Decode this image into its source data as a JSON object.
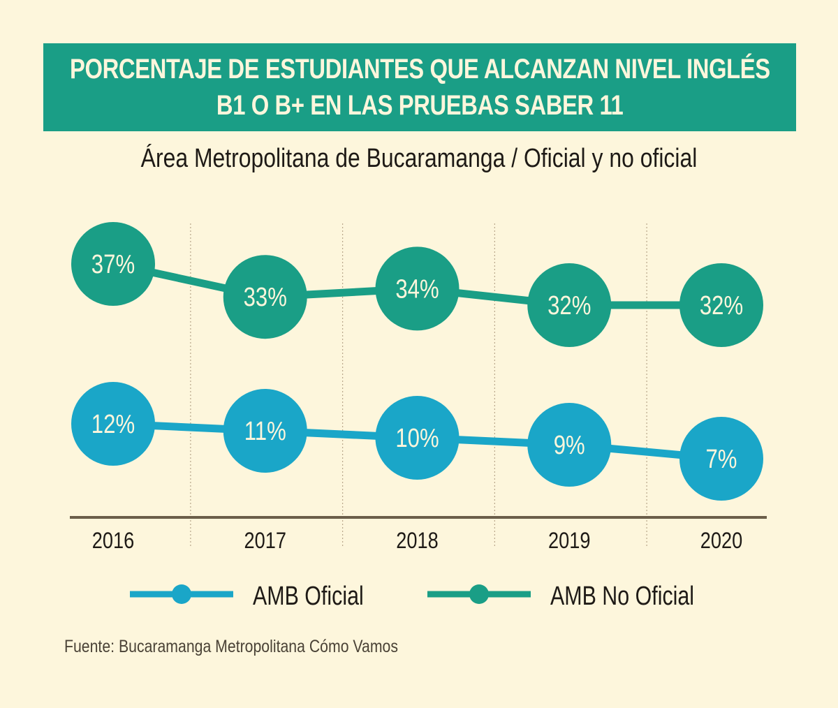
{
  "title": {
    "line1": "PORCENTAJE DE ESTUDIANTES QUE ALCANZAN NIVEL INGLÉS",
    "line2": "B1 O B+ EN LAS PRUEBAS SABER 11"
  },
  "subtitle": "Área Metropolitana de Bucaramanga / Oficial y no oficial",
  "source": "Fuente: Bucaramanga Metropolitana Cómo Vamos",
  "colors": {
    "background": "#fdf6dc",
    "banner": "#1a9e86",
    "no_oficial": "#1a9e86",
    "oficial": "#1aa6c8",
    "axis": "#6b5e49",
    "text": "#1e1a16"
  },
  "chart_data": {
    "type": "line",
    "title": "PORCENTAJE DE ESTUDIANTES QUE ALCANZAN NIVEL INGLÉS B1 O B+ EN LAS PRUEBAS SABER 11",
    "subtitle": "Área Metropolitana de Bucaramanga / Oficial y no oficial",
    "xlabel": "",
    "ylabel": "",
    "categories": [
      "2016",
      "2017",
      "2018",
      "2019",
      "2020"
    ],
    "series": [
      {
        "name": "AMB Oficial",
        "values": [
          12,
          11,
          10,
          9,
          7
        ],
        "labels": [
          "12%",
          "11%",
          "10%",
          "9%",
          "7%"
        ],
        "color": "#1aa6c8"
      },
      {
        "name": "AMB No Oficial",
        "values": [
          37,
          33,
          34,
          32,
          32
        ],
        "labels": [
          "37%",
          "33%",
          "34%",
          "32%",
          "32%"
        ],
        "color": "#1a9e86"
      }
    ],
    "legend": [
      "AMB Oficial",
      "AMB No Oficial"
    ],
    "legend_position": "bottom",
    "grid": "vertical dotted separators",
    "unit": "%"
  }
}
